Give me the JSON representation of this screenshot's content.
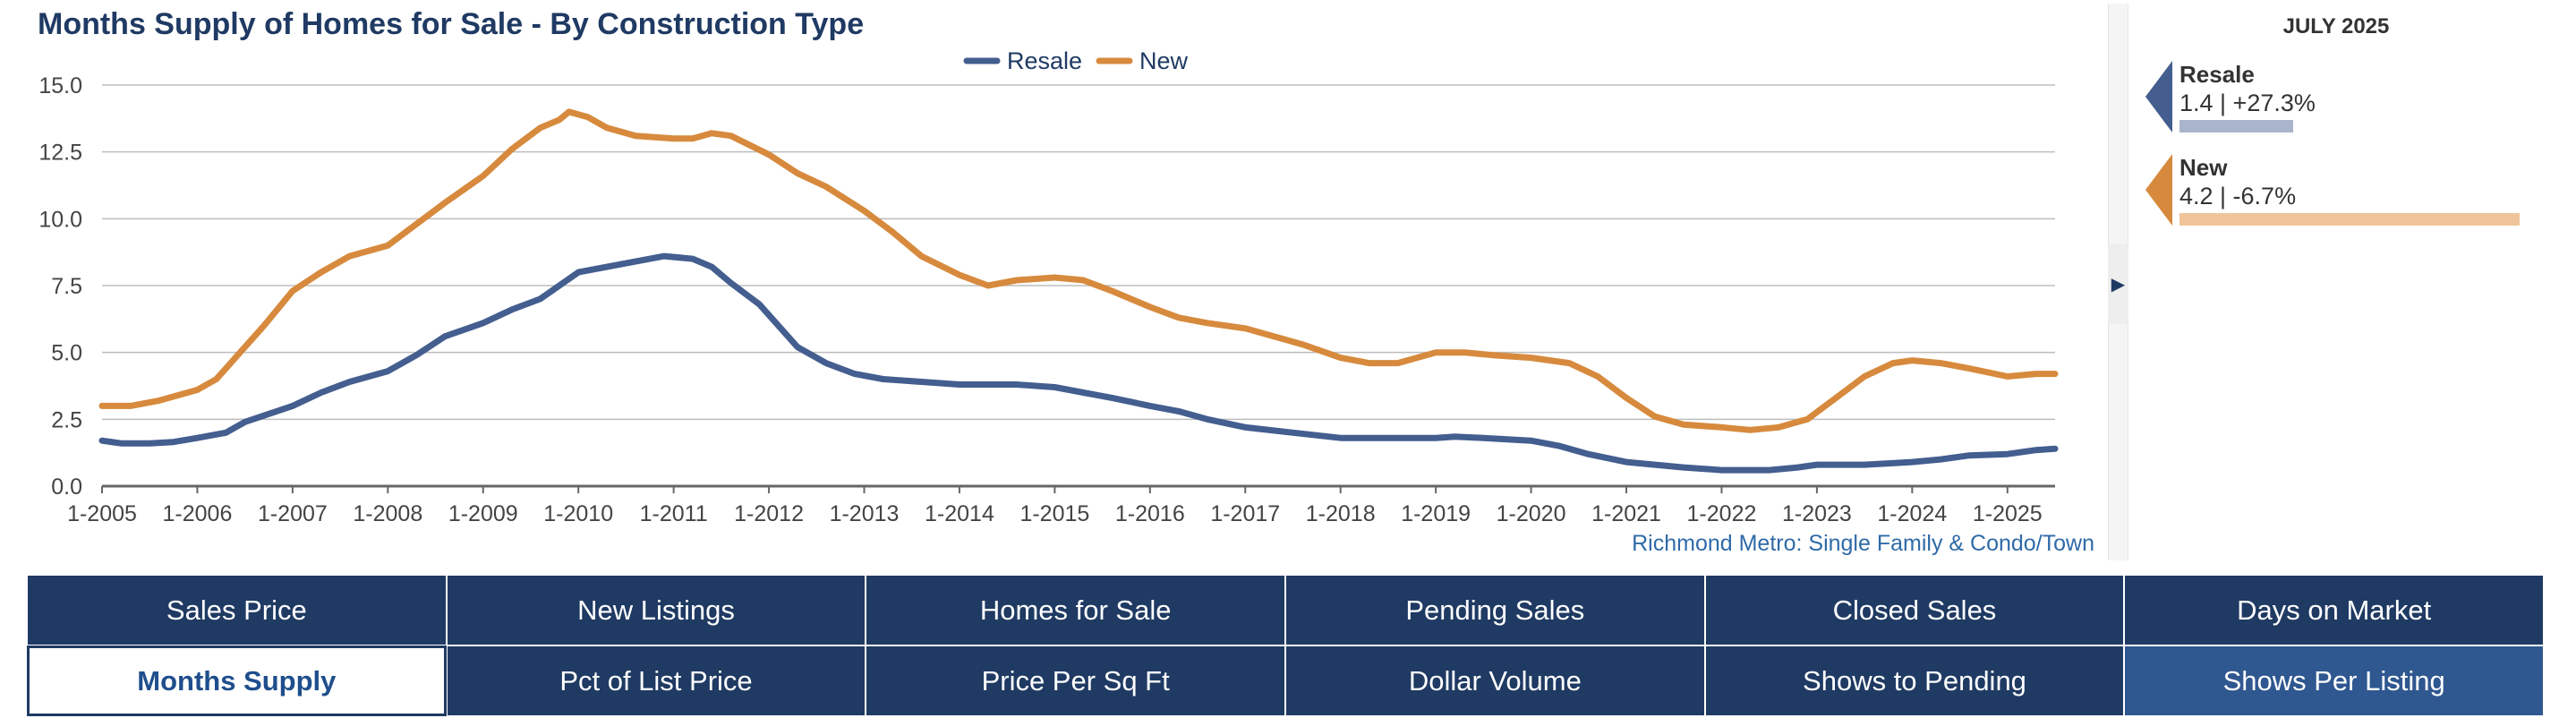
{
  "chart_data": {
    "type": "line",
    "title": "Months Supply of Homes for Sale - By Construction Type",
    "xlabel": "",
    "ylabel": "",
    "ylim": [
      0,
      15
    ],
    "yticks": [
      "0.0",
      "2.5",
      "5.0",
      "7.5",
      "10.0",
      "12.5",
      "15.0"
    ],
    "xticks": [
      "1-2005",
      "1-2006",
      "1-2007",
      "1-2008",
      "1-2009",
      "1-2010",
      "1-2011",
      "1-2012",
      "1-2013",
      "1-2014",
      "1-2015",
      "1-2016",
      "1-2017",
      "1-2018",
      "1-2019",
      "1-2020",
      "1-2021",
      "1-2022",
      "1-2023",
      "1-2024",
      "1-2025"
    ],
    "x_start": 2005.0,
    "x_end": 2025.5,
    "grid": true,
    "legend": "top-center",
    "footnote": "Richmond Metro: Single Family & Condo/Town",
    "series": [
      {
        "name": "Resale",
        "color": "#435e8f",
        "points": [
          [
            2005.0,
            1.7
          ],
          [
            2005.2,
            1.6
          ],
          [
            2005.5,
            1.6
          ],
          [
            2005.75,
            1.65
          ],
          [
            2006.0,
            1.8
          ],
          [
            2006.3,
            2.0
          ],
          [
            2006.5,
            2.4
          ],
          [
            2007.0,
            3.0
          ],
          [
            2007.3,
            3.5
          ],
          [
            2007.6,
            3.9
          ],
          [
            2008.0,
            4.3
          ],
          [
            2008.3,
            4.9
          ],
          [
            2008.6,
            5.6
          ],
          [
            2009.0,
            6.1
          ],
          [
            2009.3,
            6.6
          ],
          [
            2009.6,
            7.0
          ],
          [
            2009.8,
            7.5
          ],
          [
            2010.0,
            8.0
          ],
          [
            2010.3,
            8.2
          ],
          [
            2010.6,
            8.4
          ],
          [
            2010.9,
            8.6
          ],
          [
            2011.2,
            8.5
          ],
          [
            2011.4,
            8.2
          ],
          [
            2011.6,
            7.6
          ],
          [
            2011.9,
            6.8
          ],
          [
            2012.1,
            6.0
          ],
          [
            2012.3,
            5.2
          ],
          [
            2012.6,
            4.6
          ],
          [
            2012.9,
            4.2
          ],
          [
            2013.2,
            4.0
          ],
          [
            2013.6,
            3.9
          ],
          [
            2014.0,
            3.8
          ],
          [
            2014.2,
            3.8
          ],
          [
            2014.6,
            3.8
          ],
          [
            2015.0,
            3.7
          ],
          [
            2015.3,
            3.5
          ],
          [
            2015.6,
            3.3
          ],
          [
            2016.0,
            3.0
          ],
          [
            2016.3,
            2.8
          ],
          [
            2016.6,
            2.5
          ],
          [
            2017.0,
            2.2
          ],
          [
            2017.5,
            2.0
          ],
          [
            2018.0,
            1.8
          ],
          [
            2018.5,
            1.8
          ],
          [
            2019.0,
            1.8
          ],
          [
            2019.2,
            1.85
          ],
          [
            2019.5,
            1.8
          ],
          [
            2020.0,
            1.7
          ],
          [
            2020.3,
            1.5
          ],
          [
            2020.6,
            1.2
          ],
          [
            2021.0,
            0.9
          ],
          [
            2021.3,
            0.8
          ],
          [
            2021.6,
            0.7
          ],
          [
            2022.0,
            0.6
          ],
          [
            2022.5,
            0.6
          ],
          [
            2022.8,
            0.7
          ],
          [
            2023.0,
            0.8
          ],
          [
            2023.5,
            0.8
          ],
          [
            2024.0,
            0.9
          ],
          [
            2024.3,
            1.0
          ],
          [
            2024.6,
            1.15
          ],
          [
            2025.0,
            1.2
          ],
          [
            2025.3,
            1.35
          ],
          [
            2025.5,
            1.4
          ]
        ]
      },
      {
        "name": "New",
        "color": "#d78a3d",
        "points": [
          [
            2005.0,
            3.0
          ],
          [
            2005.3,
            3.0
          ],
          [
            2005.6,
            3.2
          ],
          [
            2006.0,
            3.6
          ],
          [
            2006.2,
            4.0
          ],
          [
            2006.4,
            4.8
          ],
          [
            2006.7,
            6.0
          ],
          [
            2007.0,
            7.3
          ],
          [
            2007.3,
            8.0
          ],
          [
            2007.6,
            8.6
          ],
          [
            2008.0,
            9.0
          ],
          [
            2008.3,
            9.8
          ],
          [
            2008.6,
            10.6
          ],
          [
            2009.0,
            11.6
          ],
          [
            2009.3,
            12.6
          ],
          [
            2009.6,
            13.4
          ],
          [
            2009.8,
            13.7
          ],
          [
            2009.9,
            14.0
          ],
          [
            2010.1,
            13.8
          ],
          [
            2010.3,
            13.4
          ],
          [
            2010.6,
            13.1
          ],
          [
            2011.0,
            13.0
          ],
          [
            2011.2,
            13.0
          ],
          [
            2011.4,
            13.2
          ],
          [
            2011.6,
            13.1
          ],
          [
            2012.0,
            12.4
          ],
          [
            2012.3,
            11.7
          ],
          [
            2012.6,
            11.2
          ],
          [
            2013.0,
            10.3
          ],
          [
            2013.3,
            9.5
          ],
          [
            2013.6,
            8.6
          ],
          [
            2014.0,
            7.9
          ],
          [
            2014.3,
            7.5
          ],
          [
            2014.6,
            7.7
          ],
          [
            2015.0,
            7.8
          ],
          [
            2015.3,
            7.7
          ],
          [
            2015.6,
            7.3
          ],
          [
            2016.0,
            6.7
          ],
          [
            2016.3,
            6.3
          ],
          [
            2016.6,
            6.1
          ],
          [
            2017.0,
            5.9
          ],
          [
            2017.3,
            5.6
          ],
          [
            2017.6,
            5.3
          ],
          [
            2018.0,
            4.8
          ],
          [
            2018.3,
            4.6
          ],
          [
            2018.6,
            4.6
          ],
          [
            2019.0,
            5.0
          ],
          [
            2019.3,
            5.0
          ],
          [
            2019.6,
            4.9
          ],
          [
            2020.0,
            4.8
          ],
          [
            2020.4,
            4.6
          ],
          [
            2020.7,
            4.1
          ],
          [
            2021.0,
            3.3
          ],
          [
            2021.3,
            2.6
          ],
          [
            2021.6,
            2.3
          ],
          [
            2022.0,
            2.2
          ],
          [
            2022.3,
            2.1
          ],
          [
            2022.6,
            2.2
          ],
          [
            2022.9,
            2.5
          ],
          [
            2023.2,
            3.3
          ],
          [
            2023.5,
            4.1
          ],
          [
            2023.8,
            4.6
          ],
          [
            2024.0,
            4.7
          ],
          [
            2024.3,
            4.6
          ],
          [
            2024.6,
            4.4
          ],
          [
            2025.0,
            4.1
          ],
          [
            2025.3,
            4.2
          ],
          [
            2025.5,
            4.2
          ]
        ]
      }
    ]
  },
  "summary": {
    "date": "JULY 2025",
    "items": [
      {
        "name": "Resale",
        "stats": "1.4 | +27.3%",
        "color": "#435e8f",
        "bar_color": "#a9b5cc",
        "value": 1.4
      },
      {
        "name": "New",
        "stats": "4.2 | -6.7%",
        "color": "#d78a3d",
        "bar_color": "#f0c49a",
        "value": 4.2
      }
    ]
  },
  "nav": {
    "row1": [
      "Sales Price",
      "New Listings",
      "Homes for Sale",
      "Pending Sales",
      "Closed Sales",
      "Days on Market"
    ],
    "row2": [
      "Months Supply",
      "Pct of List Price",
      "Price Per Sq Ft",
      "Dollar Volume",
      "Shows to Pending",
      "Shows Per Listing"
    ]
  },
  "panel": {
    "toggle_icon": "▶"
  }
}
